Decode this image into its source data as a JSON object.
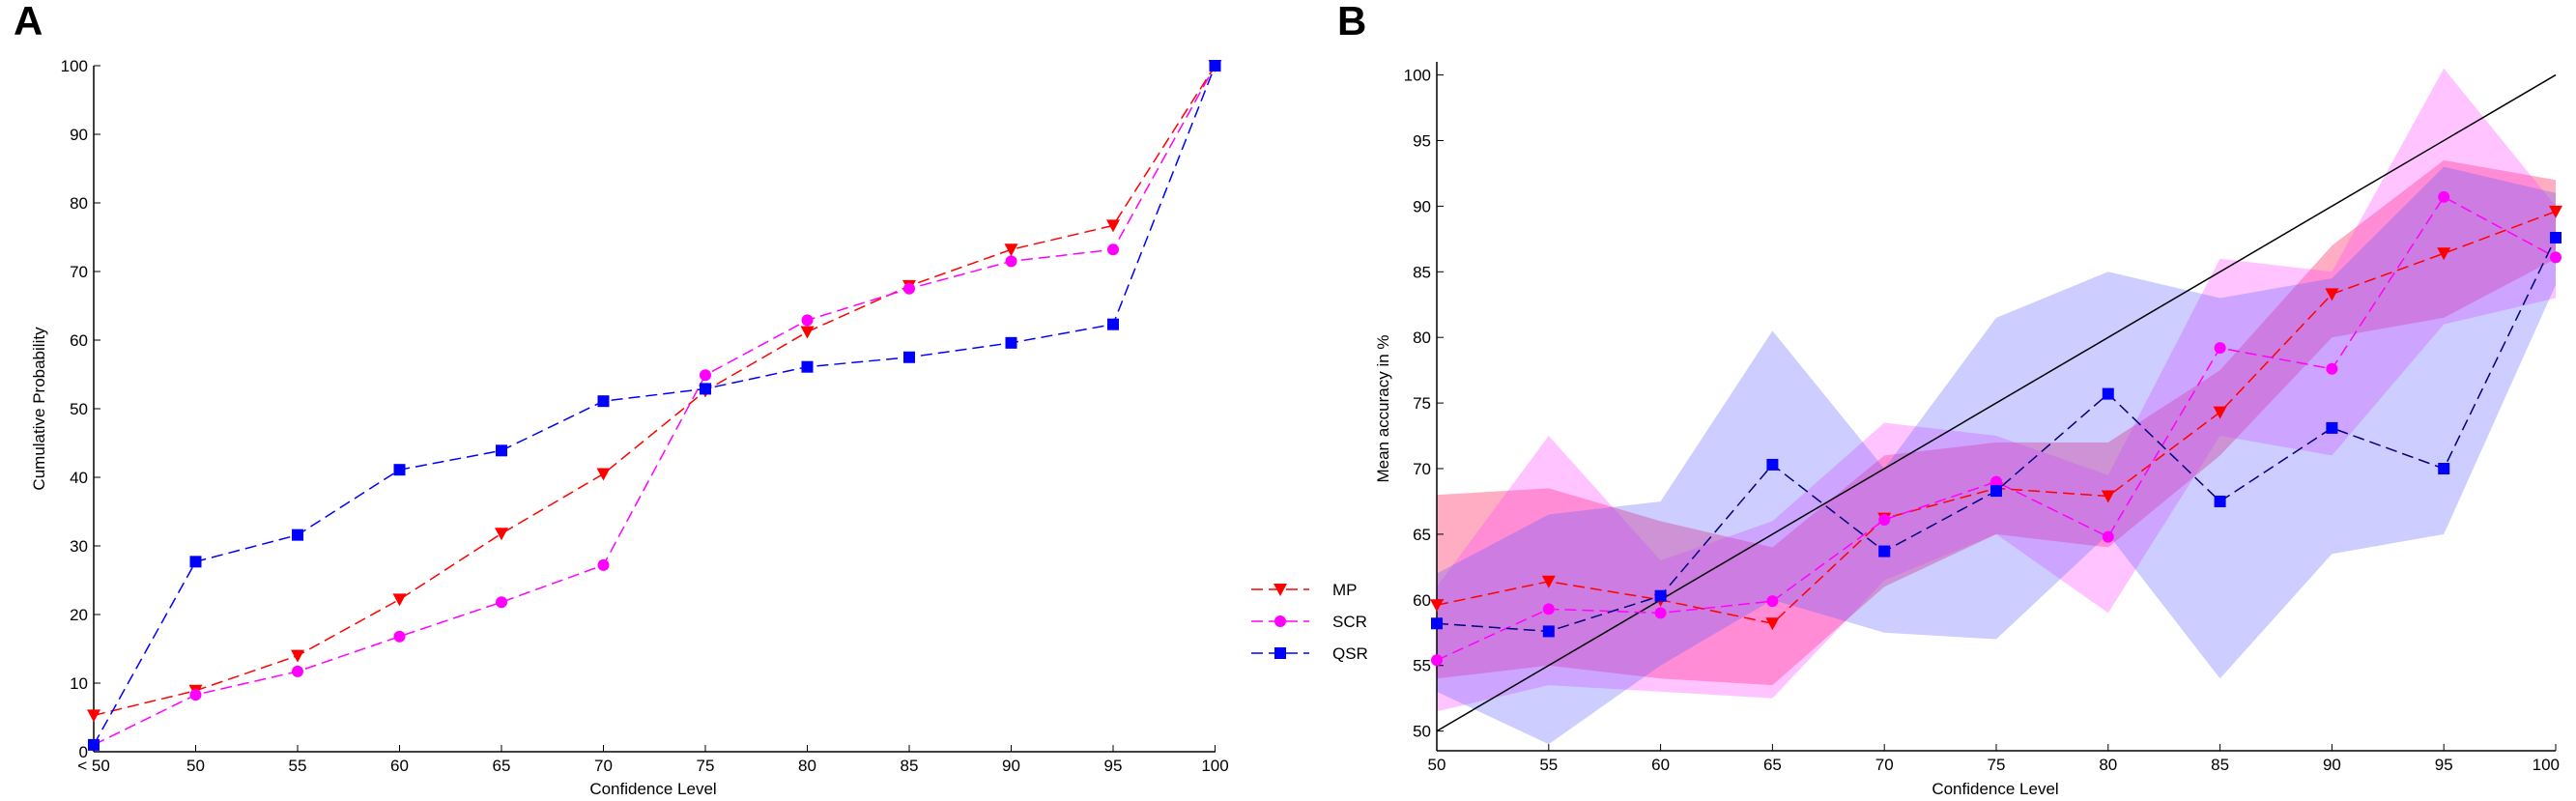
{
  "colors": {
    "MP": "#ff0000",
    "SCR": "#ff00ff",
    "QSR": "#0000ff"
  },
  "chart_data": [
    {
      "panel": "A",
      "type": "line",
      "xlabel": "Confidence Level",
      "ylabel": "Cumulative Probability",
      "categories": [
        "< 50",
        "50",
        "55",
        "60",
        "65",
        "70",
        "75",
        "80",
        "85",
        "90",
        "95",
        "100"
      ],
      "ylim": [
        0,
        100
      ],
      "yticks": [
        "0",
        "10",
        "20",
        "30",
        "40",
        "50",
        "60",
        "70",
        "80",
        "90",
        "100"
      ],
      "legend_position": "right",
      "series": [
        {
          "name": "MP",
          "marker": "triangle-down",
          "values": [
            5.3,
            8.9,
            14,
            22.2,
            31.8,
            40.5,
            52.6,
            61.2,
            67.9,
            73.2,
            76.7,
            100
          ]
        },
        {
          "name": "SCR",
          "marker": "circle",
          "values": [
            1,
            8.3,
            11.7,
            16.8,
            21.8,
            27.2,
            54.9,
            62.9,
            67.5,
            71.5,
            73.2,
            100
          ]
        },
        {
          "name": "QSR",
          "marker": "square",
          "values": [
            1,
            27.7,
            31.6,
            41.1,
            43.9,
            51.1,
            52.9,
            56.1,
            57.5,
            59.6,
            62.3,
            100
          ]
        }
      ]
    },
    {
      "panel": "B",
      "type": "line",
      "xlabel": "Confidence Level",
      "ylabel": "Mean accuracy in %",
      "x": [
        50,
        55,
        60,
        65,
        70,
        75,
        80,
        85,
        90,
        95,
        100
      ],
      "xticks": [
        "50",
        "55",
        "60",
        "65",
        "70",
        "75",
        "80",
        "85",
        "90",
        "95",
        "100"
      ],
      "yticks": [
        "50",
        "55",
        "60",
        "65",
        "70",
        "75",
        "80",
        "85",
        "90",
        "95",
        "100"
      ],
      "xlim": [
        50,
        100
      ],
      "ylim": [
        48.5,
        101
      ],
      "diagonal": [
        [
          50,
          50
        ],
        [
          100,
          100
        ]
      ],
      "series": [
        {
          "name": "MP",
          "marker": "triangle-down",
          "values": [
            59.6,
            61.4,
            60,
            58.2,
            66.2,
            68.5,
            67.9,
            74.3,
            83.3,
            86.4,
            89.6
          ],
          "lower": [
            54,
            55,
            54,
            53.5,
            61,
            65,
            64,
            71,
            80,
            81.5,
            86
          ],
          "upper": [
            68,
            68.5,
            66,
            64,
            71,
            72,
            72,
            77.5,
            87,
            93.5,
            92
          ]
        },
        {
          "name": "SCR",
          "marker": "circle",
          "values": [
            55.4,
            59.3,
            59,
            59.9,
            66.1,
            69,
            64.8,
            79.2,
            77.6,
            90.7,
            86.1
          ],
          "lower": [
            51.5,
            53.5,
            53,
            52.5,
            61.5,
            65,
            59,
            72.5,
            71,
            81,
            83
          ],
          "upper": [
            61,
            72.5,
            63,
            66,
            73.5,
            72.5,
            69.5,
            86,
            85,
            100.5,
            90
          ]
        },
        {
          "name": "QSR",
          "marker": "square",
          "values": [
            58.2,
            57.6,
            60.3,
            70.3,
            63.7,
            68.3,
            75.7,
            67.5,
            73.1,
            70,
            87.6
          ],
          "lower": [
            53,
            49,
            55,
            60,
            57.5,
            57,
            65,
            54,
            63.5,
            65,
            84
          ],
          "upper": [
            62,
            66.5,
            67.5,
            80.5,
            70,
            81.5,
            85,
            83,
            84.5,
            93,
            91
          ]
        }
      ]
    }
  ]
}
